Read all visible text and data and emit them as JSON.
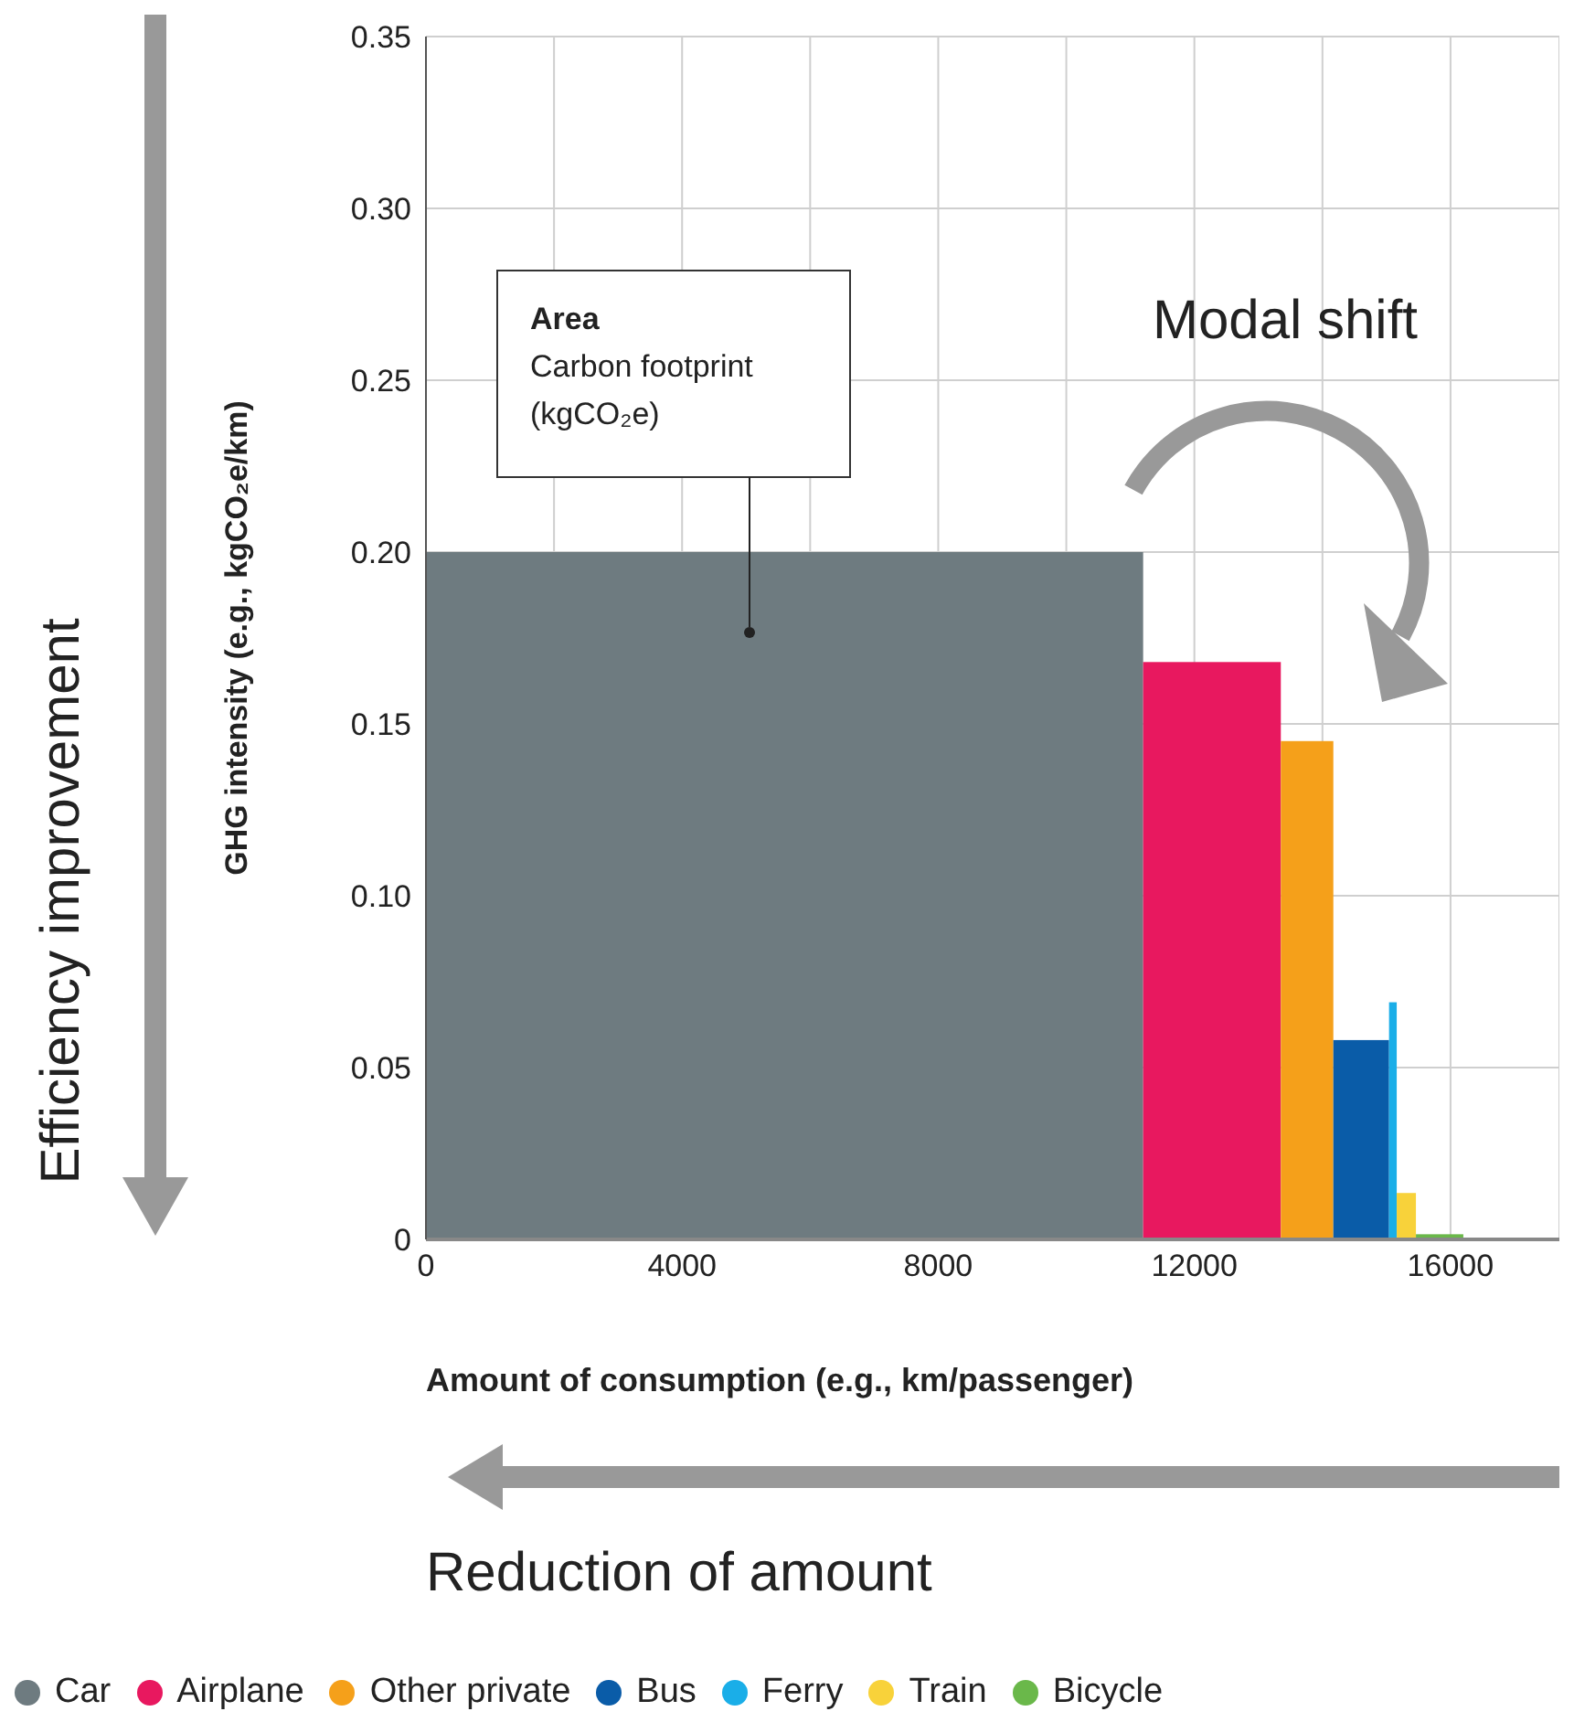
{
  "chart_data": {
    "type": "histogram",
    "bins": [
      0,
      11200,
      13350,
      14170,
      15040,
      15160,
      15460,
      16200
    ],
    "series": [
      {
        "name": "Car",
        "color": "#6e7b80",
        "values": [
          0.2,
          null,
          null,
          null,
          null,
          null,
          null
        ]
      },
      {
        "name": "Airplane",
        "color": "#e8185f",
        "values": [
          null,
          0.168,
          null,
          null,
          null,
          null,
          null
        ]
      },
      {
        "name": "Other private",
        "color": "#f5a01a",
        "values": [
          null,
          null,
          0.145,
          null,
          null,
          null,
          null
        ]
      },
      {
        "name": "Bus",
        "color": "#0a5ca8",
        "values": [
          null,
          null,
          null,
          0.058,
          null,
          null,
          null
        ]
      },
      {
        "name": "Ferry",
        "color": "#1aaee8",
        "values": [
          null,
          null,
          null,
          null,
          0.069,
          null,
          null
        ]
      },
      {
        "name": "Train",
        "color": "#f8d23a",
        "values": [
          null,
          null,
          null,
          null,
          null,
          0.0135,
          null
        ]
      },
      {
        "name": "Bicycle",
        "color": "#6ab84a",
        "values": [
          null,
          null,
          null,
          null,
          null,
          null,
          0.0015
        ]
      }
    ],
    "xlabel": "Amount of consumption (e.g., km/passenger)",
    "ylabel": "GHG intensity (e.g., kgCO₂e/km)",
    "xlim": [
      0,
      17700
    ],
    "xticks": [
      0,
      {
        "value": 2000,
        "label": null
      },
      4000,
      {
        "value": 6000,
        "label": null
      },
      8000,
      {
        "value": 10000,
        "label": null
      },
      12000,
      {
        "value": 14000,
        "label": null
      },
      16000
    ],
    "ylim": [
      0,
      0.35
    ],
    "yticks": [
      {
        "value": 0,
        "label": "0"
      },
      0.05,
      {
        "value": 0.1,
        "label": "0.10"
      },
      0.15,
      {
        "value": 0.2,
        "label": "0.20"
      },
      0.25,
      {
        "value": 0.3,
        "label": "0.30"
      },
      0.35
    ],
    "grid": true,
    "legend": "bottom",
    "annotations": [
      "Area\nCarbon footprint\n(kgCO₂e)",
      "Modal shift",
      "Efficiency improvement",
      "Reduction of amount"
    ]
  }
}
